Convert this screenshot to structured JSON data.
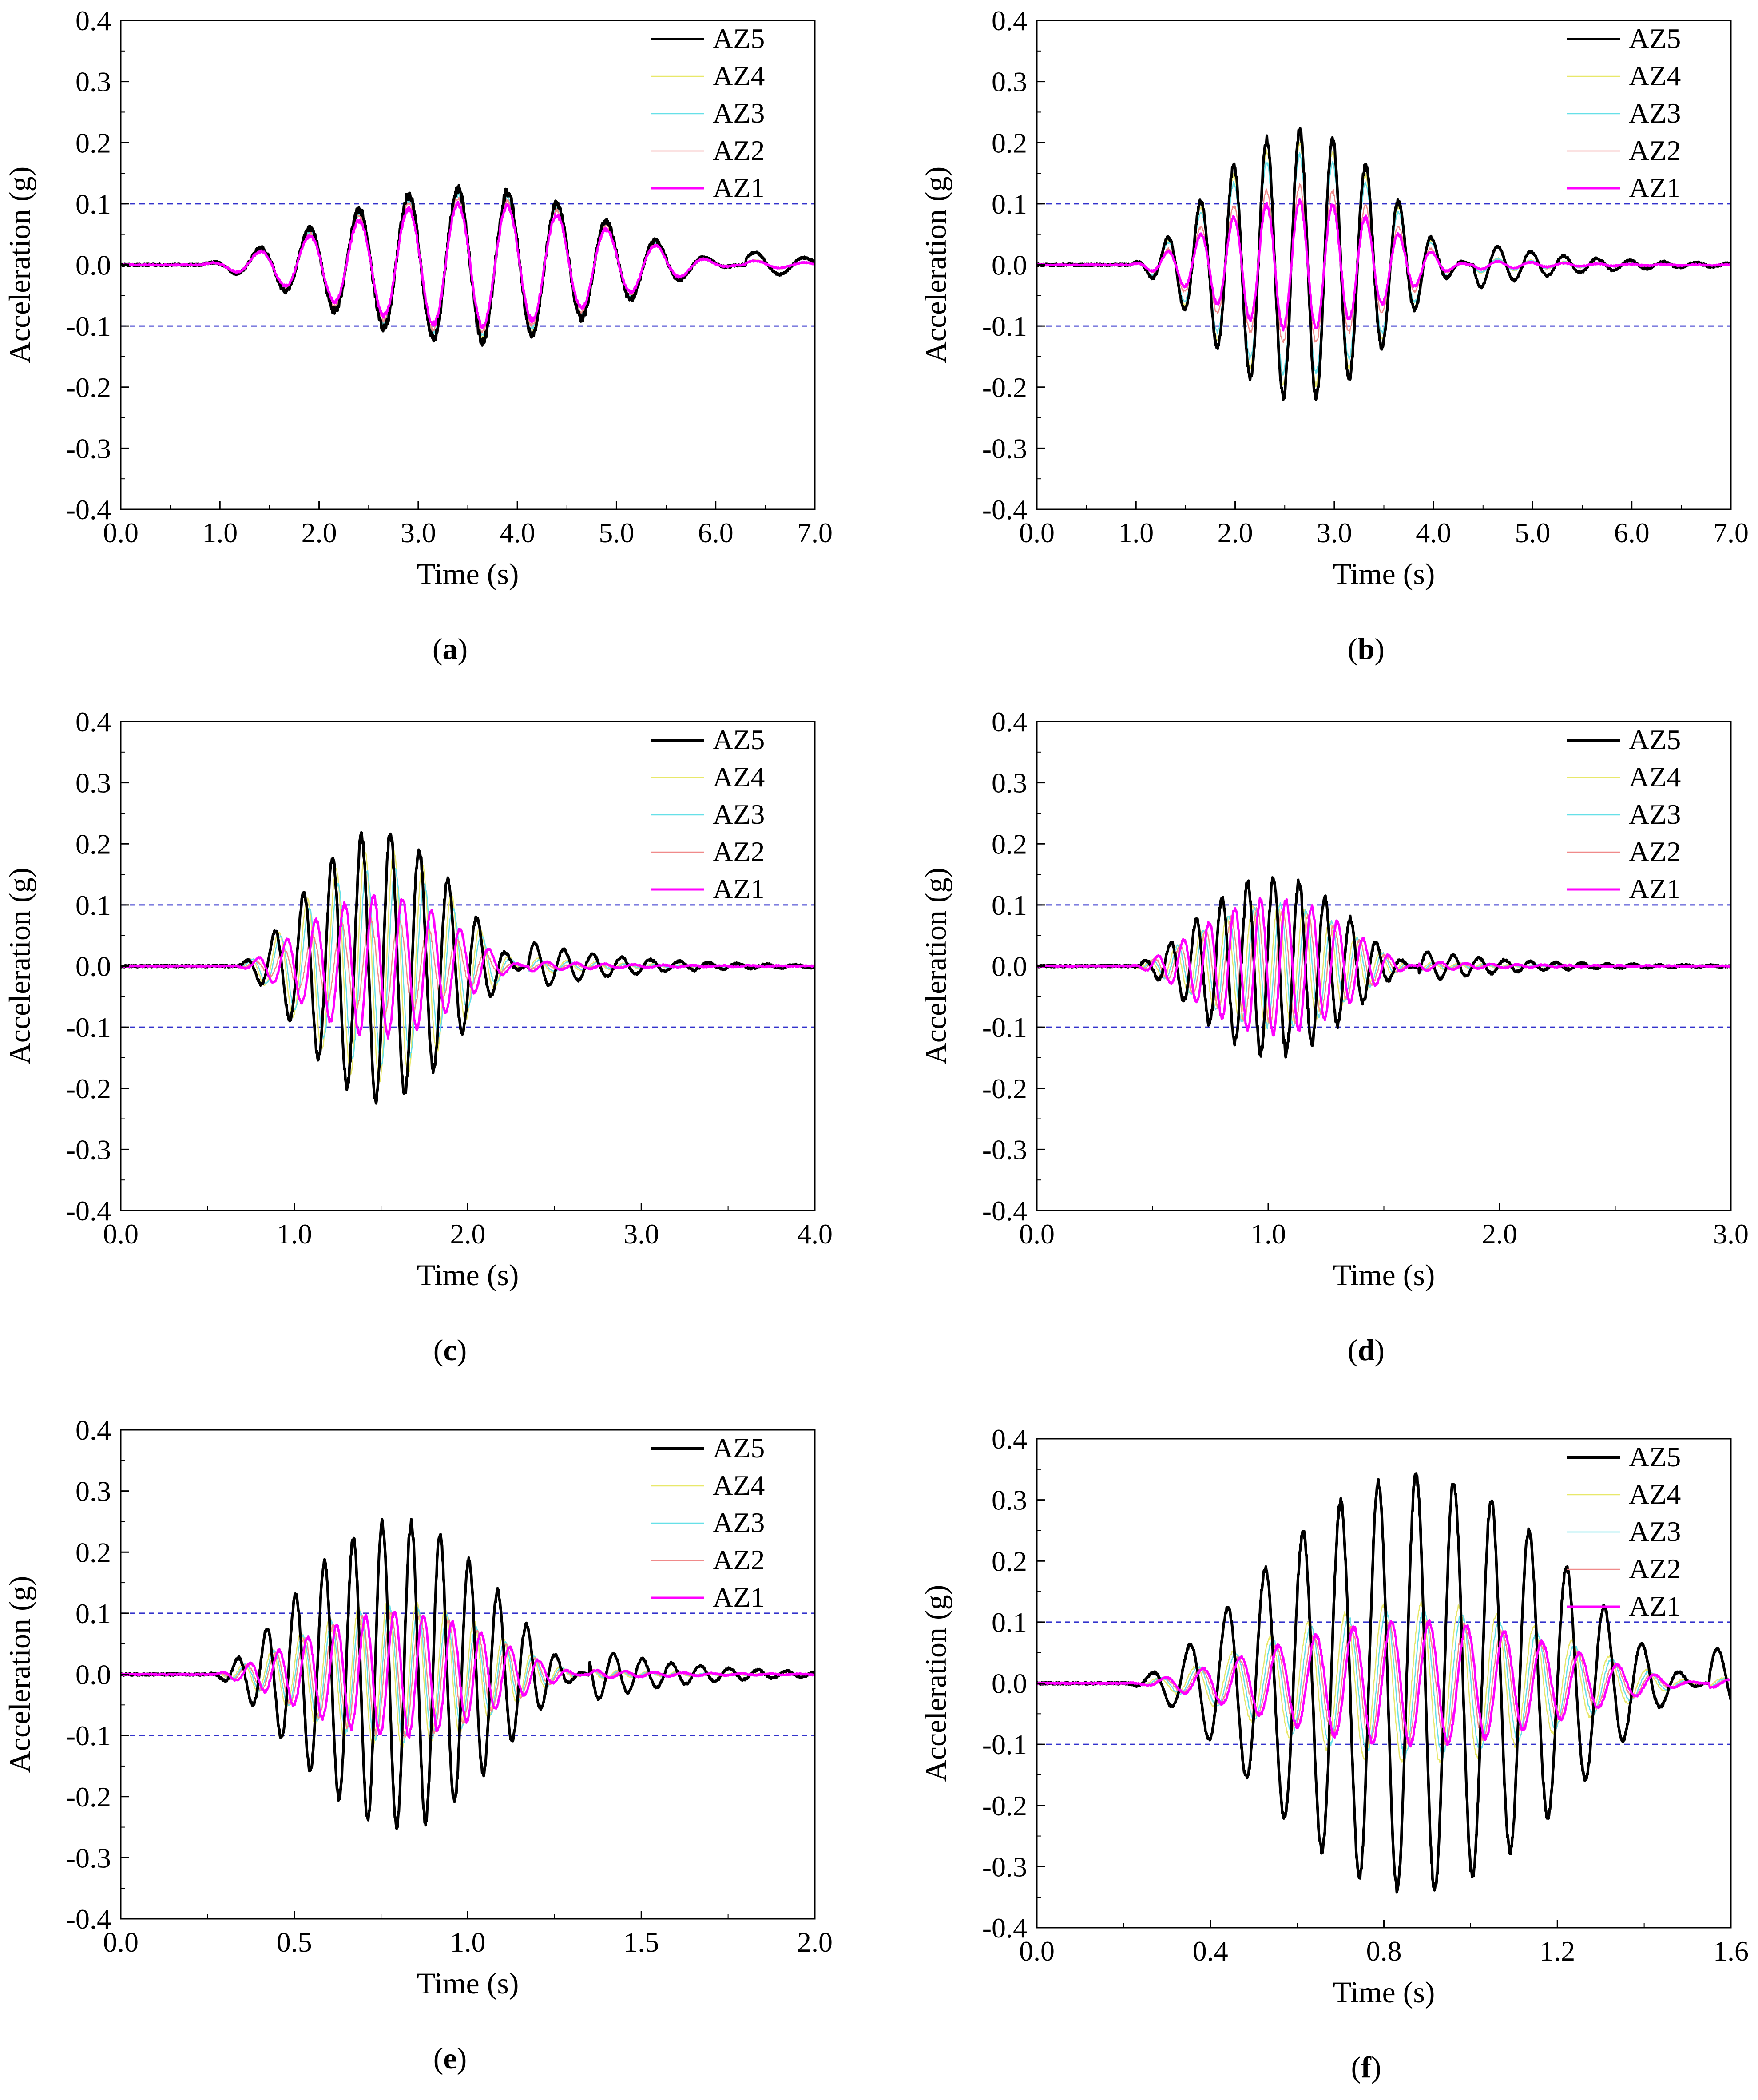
{
  "colors": {
    "AZ5": "#000000",
    "AZ4": "#e8e86a",
    "AZ3": "#66e0e8",
    "AZ2": "#f08a8a",
    "AZ1": "#ff00ff",
    "threshold": "#3333cc",
    "axis": "#000000"
  },
  "chart_data": [
    {
      "id": "a",
      "type": "line",
      "panel_label": "a",
      "xlabel": "Time (s)",
      "ylabel": "Acceleration (g)",
      "xlim": [
        0,
        7
      ],
      "ylim": [
        -0.4,
        0.4
      ],
      "xticks": [
        "0.0",
        "1.0",
        "2.0",
        "3.0",
        "4.0",
        "5.0",
        "6.0",
        "7.0"
      ],
      "yticks": [
        "0.4",
        "0.3",
        "0.2",
        "0.1",
        "0.0",
        "-0.1",
        "-0.2",
        "-0.3",
        "-0.4"
      ],
      "reference_lines": [
        0.1,
        -0.1
      ],
      "legend": [
        "AZ5",
        "AZ4",
        "AZ3",
        "AZ2",
        "AZ1"
      ],
      "legend_position": "top-right",
      "signal": {
        "t_start": 0.7,
        "t_end": 6.3,
        "freq": 2.0,
        "phase_peak": 2.4
      },
      "series": [
        {
          "name": "AZ5",
          "peak": 0.125,
          "phase_shift": 0.0
        },
        {
          "name": "AZ4",
          "peak": 0.12,
          "phase_shift": 0.0
        },
        {
          "name": "AZ3",
          "peak": 0.115,
          "phase_shift": 0.0
        },
        {
          "name": "AZ2",
          "peak": 0.11,
          "phase_shift": 0.0
        },
        {
          "name": "AZ1",
          "peak": 0.1,
          "phase_shift": 0.0
        }
      ]
    },
    {
      "id": "b",
      "type": "line",
      "panel_label": "b",
      "xlabel": "Time (s)",
      "ylabel": "Acceleration (g)",
      "xlim": [
        0,
        7
      ],
      "ylim": [
        -0.4,
        0.4
      ],
      "xticks": [
        "0.0",
        "1.0",
        "2.0",
        "3.0",
        "4.0",
        "5.0",
        "6.0",
        "7.0"
      ],
      "yticks": [
        "0.4",
        "0.3",
        "0.2",
        "0.1",
        "0.0",
        "-0.1",
        "-0.2",
        "-0.3",
        "-0.4"
      ],
      "reference_lines": [
        0.1,
        -0.1
      ],
      "legend": [
        "AZ5",
        "AZ4",
        "AZ3",
        "AZ2",
        "AZ1"
      ],
      "legend_position": "top-right",
      "signal": {
        "t_start": 0.9,
        "t_end": 4.4,
        "freq": 3.0,
        "phase_peak": 2.65
      },
      "series": [
        {
          "name": "AZ5",
          "peak": 0.22,
          "phase_shift": 0.0
        },
        {
          "name": "AZ4",
          "peak": 0.2,
          "phase_shift": 0.0
        },
        {
          "name": "AZ3",
          "peak": 0.18,
          "phase_shift": 0.0
        },
        {
          "name": "AZ2",
          "peak": 0.13,
          "phase_shift": 0.0
        },
        {
          "name": "AZ1",
          "peak": 0.105,
          "phase_shift": 0.0
        }
      ]
    },
    {
      "id": "c",
      "type": "line",
      "panel_label": "c",
      "xlabel": "Time (s)",
      "ylabel": "Acceleration (g)",
      "xlim": [
        0,
        4
      ],
      "ylim": [
        -0.4,
        0.4
      ],
      "xticks": [
        "0.0",
        "1.0",
        "2.0",
        "3.0",
        "4.0"
      ],
      "yticks": [
        "0.4",
        "0.3",
        "0.2",
        "0.1",
        "0.0",
        "-0.1",
        "-0.2",
        "-0.3",
        "-0.4"
      ],
      "reference_lines": [
        0.1,
        -0.1
      ],
      "legend": [
        "AZ5",
        "AZ4",
        "AZ3",
        "AZ2",
        "AZ1"
      ],
      "legend_position": "top-right",
      "signal": {
        "t_start": 0.65,
        "t_end": 2.35,
        "freq": 6.0,
        "phase_peak": 1.22
      },
      "series": [
        {
          "name": "AZ5",
          "peak": 0.22,
          "phase_shift": 0.0
        },
        {
          "name": "AZ4",
          "peak": 0.19,
          "phase_shift": 0.02
        },
        {
          "name": "AZ3",
          "peak": 0.16,
          "phase_shift": 0.03
        },
        {
          "name": "AZ2",
          "peak": 0.08,
          "phase_shift": 0.05
        },
        {
          "name": "AZ1",
          "peak": 0.115,
          "phase_shift": 0.07
        }
      ]
    },
    {
      "id": "d",
      "type": "line",
      "panel_label": "d",
      "xlabel": "Time (s)",
      "ylabel": "Acceleration (g)",
      "xlim": [
        0,
        3
      ],
      "ylim": [
        -0.4,
        0.4
      ],
      "xticks": [
        "0.0",
        "1.0",
        "2.0",
        "3.0"
      ],
      "yticks": [
        "0.4",
        "0.3",
        "0.2",
        "0.1",
        "0.0",
        "-0.1",
        "-0.2",
        "-0.3",
        "-0.4"
      ],
      "reference_lines": [
        0.1,
        -0.1
      ],
      "legend": [
        "AZ5",
        "AZ4",
        "AZ3",
        "AZ2",
        "AZ1"
      ],
      "legend_position": "top-right",
      "signal": {
        "t_start": 0.4,
        "t_end": 1.65,
        "freq": 9.0,
        "phase_peak": 0.8
      },
      "series": [
        {
          "name": "AZ5",
          "peak": 0.145,
          "phase_shift": 0.0
        },
        {
          "name": "AZ4",
          "peak": 0.1,
          "phase_shift": 0.02
        },
        {
          "name": "AZ3",
          "peak": 0.1,
          "phase_shift": 0.03
        },
        {
          "name": "AZ2",
          "peak": 0.095,
          "phase_shift": 0.04
        },
        {
          "name": "AZ1",
          "peak": 0.11,
          "phase_shift": 0.055
        }
      ]
    },
    {
      "id": "e",
      "type": "line",
      "panel_label": "e",
      "xlabel": "Time (s)",
      "ylabel": "Acceleration (g)",
      "xlim": [
        0,
        2
      ],
      "ylim": [
        -0.4,
        0.4
      ],
      "xticks": [
        "0.0",
        "0.5",
        "1.0",
        "1.5",
        "2.0"
      ],
      "yticks": [
        "0.4",
        "0.3",
        "0.2",
        "0.1",
        "0.0",
        "-0.1",
        "-0.2",
        "-0.3",
        "-0.4"
      ],
      "reference_lines": [
        0.1,
        -0.1
      ],
      "legend": [
        "AZ5",
        "AZ4",
        "AZ3",
        "AZ2",
        "AZ1"
      ],
      "legend_position": "top-right",
      "signal": {
        "t_start": 0.25,
        "t_end": 1.35,
        "freq": 12.0,
        "phase_peak": 0.92
      },
      "series": [
        {
          "name": "AZ5",
          "peak": 0.25,
          "phase_shift": 0.0
        },
        {
          "name": "AZ4",
          "peak": 0.12,
          "phase_shift": 0.015
        },
        {
          "name": "AZ3",
          "peak": 0.11,
          "phase_shift": 0.02
        },
        {
          "name": "AZ2",
          "peak": 0.1,
          "phase_shift": 0.025
        },
        {
          "name": "AZ1",
          "peak": 0.1,
          "phase_shift": 0.035
        }
      ]
    },
    {
      "id": "f",
      "type": "line",
      "panel_label": "f",
      "xlabel": "Time (s)",
      "ylabel": "Acceleration (g)",
      "xlim": [
        0,
        1.6
      ],
      "ylim": [
        -0.4,
        0.4
      ],
      "xticks": [
        "0.0",
        "0.4",
        "0.8",
        "1.2",
        "1.6"
      ],
      "yticks": [
        "0.4",
        "0.3",
        "0.2",
        "0.1",
        "0.0",
        "-0.1",
        "-0.2",
        "-0.3",
        "-0.4"
      ],
      "reference_lines": [
        0.1,
        -0.1
      ],
      "legend": [
        "AZ5",
        "AZ4",
        "AZ3",
        "AZ2",
        "AZ1"
      ],
      "legend_position": "top-right",
      "signal": {
        "t_start": 0.2,
        "t_end": 1.55,
        "freq": 11.5,
        "phase_peak": 0.7
      },
      "series": [
        {
          "name": "AZ5",
          "peak": 0.34,
          "phase_shift": 0.0
        },
        {
          "name": "AZ4",
          "peak": 0.13,
          "phase_shift": 0.012
        },
        {
          "name": "AZ3",
          "peak": 0.12,
          "phase_shift": 0.018
        },
        {
          "name": "AZ2",
          "peak": 0.1,
          "phase_shift": 0.024
        },
        {
          "name": "AZ1",
          "peak": 0.1,
          "phase_shift": 0.03
        }
      ]
    }
  ]
}
